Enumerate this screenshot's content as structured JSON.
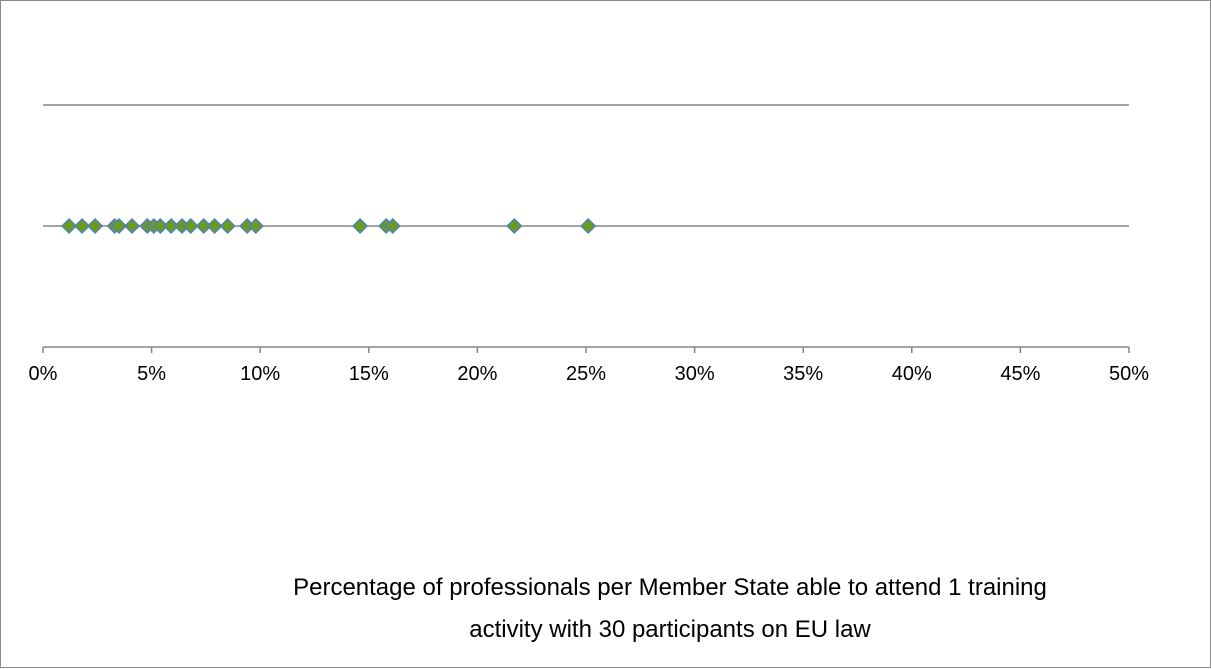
{
  "chart_data": {
    "type": "scatter",
    "title": "Percentage of professionals per Member State able to attend 1 training activity with 30 participants on EU law",
    "title_lines": [
      "Percentage of professionals per Member State able to attend 1 training",
      "activity with 30 participants on EU law"
    ],
    "xlim": [
      0,
      0.5
    ],
    "ylim": [
      0,
      2
    ],
    "x_ticks": [
      0,
      0.05,
      0.1,
      0.15,
      0.2,
      0.25,
      0.3,
      0.35,
      0.4,
      0.45,
      0.5
    ],
    "x_tick_labels": [
      "0%",
      "5%",
      "10%",
      "15%",
      "20%",
      "25%",
      "30%",
      "35%",
      "40%",
      "45%",
      "50%"
    ],
    "y_gridlines": [
      1,
      2
    ],
    "grid": true,
    "legend": "none",
    "marker": "diamond",
    "marker_color": "#6a9b1e",
    "marker_edge_color": "#4f81bd",
    "series": [
      {
        "x": [
          0.012,
          0.018,
          0.024,
          0.033,
          0.035,
          0.041,
          0.048,
          0.051,
          0.054,
          0.059,
          0.064,
          0.068,
          0.074,
          0.079,
          0.085,
          0.094,
          0.098,
          0.146,
          0.158,
          0.161,
          0.217,
          0.251
        ],
        "y": [
          1,
          1,
          1,
          1,
          1,
          1,
          1,
          1,
          1,
          1,
          1,
          1,
          1,
          1,
          1,
          1,
          1,
          1,
          1,
          1,
          1,
          1
        ]
      }
    ]
  }
}
